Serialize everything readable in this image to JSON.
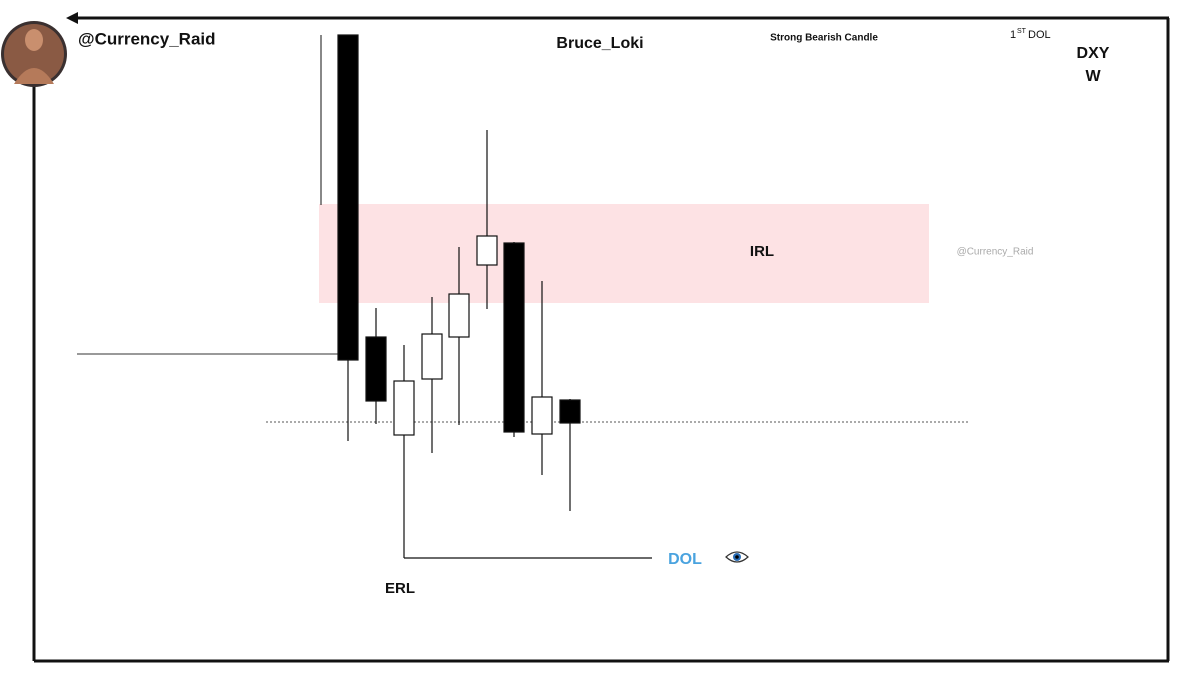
{
  "header": {
    "handle": "@Currency_Raid",
    "author": "Bruce_Loki"
  },
  "annotations": {
    "strong_candle": "Strong Bearish Candle",
    "first_dol": {
      "number": "1",
      "superscript": "ST",
      "text": "DOL"
    },
    "symbol": "DXY",
    "timeframe": "W",
    "irl": "IRL",
    "watermark": "@Currency_Raid",
    "dol": "DOL",
    "erl": "ERL"
  }
}
